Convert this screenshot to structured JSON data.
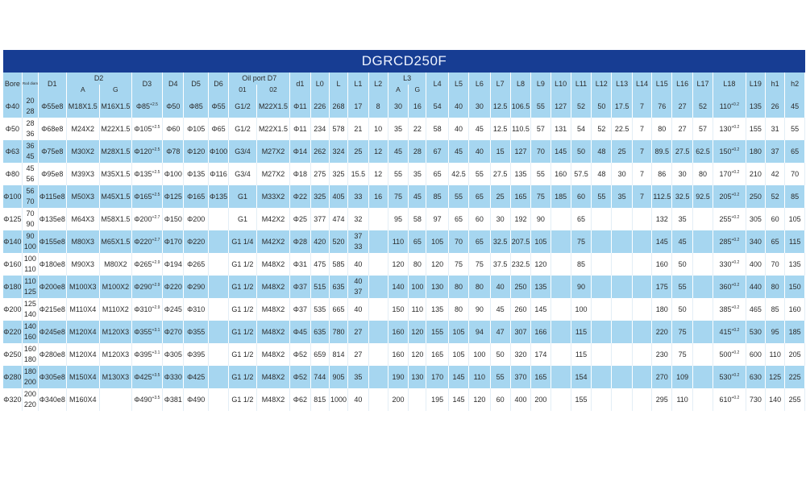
{
  "title": "DGRCD250F",
  "header": {
    "bore": "Bore",
    "rod_diameter": "Rod diameter",
    "d1_cap": "D1",
    "d2": "D2",
    "d2_a": "A",
    "d2_g": "G",
    "d3": "D3",
    "d4": "D4",
    "d5": "D5",
    "d6": "D6",
    "oil_port": "Oil port D7",
    "o1": "01",
    "o2": "02",
    "d1": "d1",
    "l0": "L0",
    "l": "L",
    "l1": "L1",
    "l2": "L2",
    "l3": "L3",
    "l3_a": "A",
    "l3_g": "G",
    "l4": "L4",
    "l5": "L5",
    "l6": "L6",
    "l7": "L7",
    "l8": "L8",
    "l9": "L9",
    "l10": "L10",
    "l11": "L11",
    "l12": "L12",
    "l13": "L13",
    "l14": "L14",
    "l15": "L15",
    "l16": "L16",
    "l17": "L17",
    "l18": "L18",
    "l19": "L19",
    "h1": "h1",
    "h2": "h2"
  },
  "rows": [
    {
      "bore": "Φ40",
      "rod": [
        "20",
        "28"
      ],
      "D1": "Φ55e8",
      "D2A": "M18X1.5",
      "D2G": "M16X1.5",
      "D3": "Φ85",
      "D3tol": "+2.5",
      "D4": "Φ50",
      "D5": "Φ85",
      "D6": "Φ55",
      "O1": "G1/2",
      "O2": "M22X1.5",
      "d1": "Φ11",
      "L0": "226",
      "L": "268",
      "L1": [
        "17"
      ],
      "L2": "8",
      "L3A": "30",
      "L3G": "16",
      "L4": "54",
      "L5": "40",
      "L6": "30",
      "L7": "12.5",
      "L8": "106.5",
      "L9": "55",
      "L10": "127",
      "L11": "52",
      "L12": "50",
      "L13": "17.5",
      "L14": "7",
      "L15": "76",
      "L16": "27",
      "L17": "52",
      "L18": "110",
      "L18tol": "+0.2",
      "L19": "135",
      "h1": "26",
      "h2": "45"
    },
    {
      "bore": "Φ50",
      "rod": [
        "28",
        "36"
      ],
      "D1": "Φ68e8",
      "D2A": "M24X2",
      "D2G": "M22X1.5",
      "D3": "Φ105",
      "D3tol": "+2.5",
      "D4": "Φ60",
      "D5": "Φ105",
      "D6": "Φ65",
      "O1": "G1/2",
      "O2": "M22X1.5",
      "d1": "Φ11",
      "L0": "234",
      "L": "578",
      "L1": [
        "21"
      ],
      "L2": "10",
      "L3A": "35",
      "L3G": "22",
      "L4": "58",
      "L5": "40",
      "L6": "45",
      "L7": "12.5",
      "L8": "110.5",
      "L9": "57",
      "L10": "131",
      "L11": "54",
      "L12": "52",
      "L13": "22.5",
      "L14": "7",
      "L15": "80",
      "L16": "27",
      "L17": "57",
      "L18": "130",
      "L18tol": "+0.2",
      "L19": "155",
      "h1": "31",
      "h2": "55"
    },
    {
      "bore": "Φ63",
      "rod": [
        "36",
        "45"
      ],
      "D1": "Φ75e8",
      "D2A": "M30X2",
      "D2G": "M28X1.5",
      "D3": "Φ120",
      "D3tol": "+2.5",
      "D4": "Φ78",
      "D5": "Φ120",
      "D6": "Φ100",
      "O1": "G3/4",
      "O2": "M27X2",
      "d1": "Φ14",
      "L0": "262",
      "L": "324",
      "L1": [
        "25"
      ],
      "L2": "12",
      "L3A": "45",
      "L3G": "28",
      "L4": "67",
      "L5": "45",
      "L6": "40",
      "L7": "15",
      "L8": "127",
      "L9": "70",
      "L10": "145",
      "L11": "50",
      "L12": "48",
      "L13": "25",
      "L14": "7",
      "L15": "89.5",
      "L16": "27.5",
      "L17": "62.5",
      "L18": "150",
      "L18tol": "+0.2",
      "L19": "180",
      "h1": "37",
      "h2": "65"
    },
    {
      "bore": "Φ80",
      "rod": [
        "45",
        "56"
      ],
      "D1": "Φ95e8",
      "D2A": "M39X3",
      "D2G": "M35X1.5",
      "D3": "Φ135",
      "D3tol": "+2.5",
      "D4": "Φ100",
      "D5": "Φ135",
      "D6": "Φ116",
      "O1": "G3/4",
      "O2": "M27X2",
      "d1": "Φ18",
      "L0": "275",
      "L": "325",
      "L1": [
        "15.5"
      ],
      "L2": "12",
      "L3A": "55",
      "L3G": "35",
      "L4": "65",
      "L5": "42.5",
      "L6": "55",
      "L7": "27.5",
      "L8": "135",
      "L9": "55",
      "L10": "160",
      "L11": "57.5",
      "L12": "48",
      "L13": "30",
      "L14": "7",
      "L15": "86",
      "L16": "30",
      "L17": "80",
      "L18": "170",
      "L18tol": "+0.2",
      "L19": "210",
      "h1": "42",
      "h2": "70"
    },
    {
      "bore": "Φ100",
      "rod": [
        "56",
        "70"
      ],
      "D1": "Φ115e8",
      "D2A": "M50X3",
      "D2G": "M45X1.5",
      "D3": "Φ165",
      "D3tol": "+2.5",
      "D4": "Φ125",
      "D5": "Φ165",
      "D6": "Φ135",
      "O1": "G1",
      "O2": "M33X2",
      "d1": "Φ22",
      "L0": "325",
      "L": "405",
      "L1": [
        "33"
      ],
      "L2": "16",
      "L3A": "75",
      "L3G": "45",
      "L4": "85",
      "L5": "55",
      "L6": "65",
      "L7": "25",
      "L8": "165",
      "L9": "75",
      "L10": "185",
      "L11": "60",
      "L12": "55",
      "L13": "35",
      "L14": "7",
      "L15": "112.5",
      "L16": "32.5",
      "L17": "92.5",
      "L18": "205",
      "L18tol": "+0.2",
      "L19": "250",
      "h1": "52",
      "h2": "85"
    },
    {
      "bore": "Φ125",
      "rod": [
        "70",
        "90"
      ],
      "D1": "Φ135e8",
      "D2A": "M64X3",
      "D2G": "M58X1.5",
      "D3": "Φ200",
      "D3tol": "+2.7",
      "D4": "Φ150",
      "D5": "Φ200",
      "D6": "",
      "O1": "G1",
      "O2": "M42X2",
      "d1": "Φ25",
      "L0": "377",
      "L": "474",
      "L1": [
        "32"
      ],
      "L2": "",
      "L3A": "95",
      "L3G": "58",
      "L4": "97",
      "L5": "65",
      "L6": "60",
      "L7": "30",
      "L8": "192",
      "L9": "90",
      "L10": "",
      "L11": "65",
      "L12": "",
      "L13": "",
      "L14": "",
      "L15": "132",
      "L16": "35",
      "L17": "",
      "L18": "255",
      "L18tol": "+0.2",
      "L19": "305",
      "h1": "60",
      "h2": "105"
    },
    {
      "bore": "Φ140",
      "rod": [
        "90",
        "100"
      ],
      "D1": "Φ155e8",
      "D2A": "M80X3",
      "D2G": "M65X1.5",
      "D3": "Φ220",
      "D3tol": "+2.7",
      "D4": "Φ170",
      "D5": "Φ220",
      "D6": "",
      "O1": "G1 1/4",
      "O2": "M42X2",
      "d1": "Φ28",
      "L0": "420",
      "L": "520",
      "L1": [
        "37",
        "33"
      ],
      "L2": "",
      "L3A": "110",
      "L3G": "65",
      "L4": "105",
      "L5": "70",
      "L6": "65",
      "L7": "32.5",
      "L8": "207.5",
      "L9": "105",
      "L10": "",
      "L11": "75",
      "L12": "",
      "L13": "",
      "L14": "",
      "L15": "145",
      "L16": "45",
      "L17": "",
      "L18": "285",
      "L18tol": "+0.2",
      "L19": "340",
      "h1": "65",
      "h2": "115"
    },
    {
      "bore": "Φ160",
      "rod": [
        "100",
        "110"
      ],
      "D1": "Φ180e8",
      "D2A": "M90X3",
      "D2G": "M80X2",
      "D3": "Φ265",
      "D3tol": "+2.9",
      "D4": "Φ194",
      "D5": "Φ265",
      "D6": "",
      "O1": "G1 1/2",
      "O2": "M48X2",
      "d1": "Φ31",
      "L0": "475",
      "L": "585",
      "L1": [
        "40"
      ],
      "L2": "",
      "L3A": "120",
      "L3G": "80",
      "L4": "120",
      "L5": "75",
      "L6": "75",
      "L7": "37.5",
      "L8": "232.5",
      "L9": "120",
      "L10": "",
      "L11": "85",
      "L12": "",
      "L13": "",
      "L14": "",
      "L15": "160",
      "L16": "50",
      "L17": "",
      "L18": "330",
      "L18tol": "+0.2",
      "L19": "400",
      "h1": "70",
      "h2": "135"
    },
    {
      "bore": "Φ180",
      "rod": [
        "110",
        "125"
      ],
      "D1": "Φ200e8",
      "D2A": "M100X3",
      "D2G": "M100X2",
      "D3": "Φ290",
      "D3tol": "+2.9",
      "D4": "Φ220",
      "D5": "Φ290",
      "D6": "",
      "O1": "G1 1/2",
      "O2": "M48X2",
      "d1": "Φ37",
      "L0": "515",
      "L": "635",
      "L1": [
        "40",
        "37"
      ],
      "L2": "",
      "L3A": "140",
      "L3G": "100",
      "L4": "130",
      "L5": "80",
      "L6": "80",
      "L7": "40",
      "L8": "250",
      "L9": "135",
      "L10": "",
      "L11": "90",
      "L12": "",
      "L13": "",
      "L14": "",
      "L15": "175",
      "L16": "55",
      "L17": "",
      "L18": "360",
      "L18tol": "+0.2",
      "L19": "440",
      "h1": "80",
      "h2": "150"
    },
    {
      "bore": "Φ200",
      "rod": [
        "125",
        "140"
      ],
      "D1": "Φ215e8",
      "D2A": "M110X4",
      "D2G": "M110X2",
      "D3": "Φ310",
      "D3tol": "+2.9",
      "D4": "Φ245",
      "D5": "Φ310",
      "D6": "",
      "O1": "G1 1/2",
      "O2": "M48X2",
      "d1": "Φ37",
      "L0": "535",
      "L": "665",
      "L1": [
        "40"
      ],
      "L2": "",
      "L3A": "150",
      "L3G": "110",
      "L4": "135",
      "L5": "80",
      "L6": "90",
      "L7": "45",
      "L8": "260",
      "L9": "145",
      "L10": "",
      "L11": "100",
      "L12": "",
      "L13": "",
      "L14": "",
      "L15": "180",
      "L16": "50",
      "L17": "",
      "L18": "385",
      "L18tol": "+0.2",
      "L19": "465",
      "h1": "85",
      "h2": "160"
    },
    {
      "bore": "Φ220",
      "rod": [
        "140",
        "160"
      ],
      "D1": "Φ245e8",
      "D2A": "M120X4",
      "D2G": "M120X3",
      "D3": "Φ355",
      "D3tol": "+3.1",
      "D4": "Φ270",
      "D5": "Φ355",
      "D6": "",
      "O1": "G1 1/2",
      "O2": "M48X2",
      "d1": "Φ45",
      "L0": "635",
      "L": "780",
      "L1": [
        "27"
      ],
      "L2": "",
      "L3A": "160",
      "L3G": "120",
      "L4": "155",
      "L5": "105",
      "L6": "94",
      "L7": "47",
      "L8": "307",
      "L9": "166",
      "L10": "",
      "L11": "115",
      "L12": "",
      "L13": "",
      "L14": "",
      "L15": "220",
      "L16": "75",
      "L17": "",
      "L18": "415",
      "L18tol": "+0.2",
      "L19": "530",
      "h1": "95",
      "h2": "185"
    },
    {
      "bore": "Φ250",
      "rod": [
        "160",
        "180"
      ],
      "D1": "Φ280e8",
      "D2A": "M120X4",
      "D2G": "M120X3",
      "D3": "Φ395",
      "D3tol": "+3.1",
      "D4": "Φ305",
      "D5": "Φ395",
      "D6": "",
      "O1": "G1 1/2",
      "O2": "M48X2",
      "d1": "Φ52",
      "L0": "659",
      "L": "814",
      "L1": [
        "27"
      ],
      "L2": "",
      "L3A": "160",
      "L3G": "120",
      "L4": "165",
      "L5": "105",
      "L6": "100",
      "L7": "50",
      "L8": "320",
      "L9": "174",
      "L10": "",
      "L11": "115",
      "L12": "",
      "L13": "",
      "L14": "",
      "L15": "230",
      "L16": "75",
      "L17": "",
      "L18": "500",
      "L18tol": "+0.2",
      "L19": "600",
      "h1": "110",
      "h2": "205"
    },
    {
      "bore": "Φ280",
      "rod": [
        "180",
        "200"
      ],
      "D1": "Φ305e8",
      "D2A": "M150X4",
      "D2G": "M130X3",
      "D3": "Φ425",
      "D3tol": "+3.5",
      "D4": "Φ330",
      "D5": "Φ425",
      "D6": "",
      "O1": "G1 1/2",
      "O2": "M48X2",
      "d1": "Φ52",
      "L0": "744",
      "L": "905",
      "L1": [
        "35"
      ],
      "L2": "",
      "L3A": "190",
      "L3G": "130",
      "L4": "170",
      "L5": "145",
      "L6": "110",
      "L7": "55",
      "L8": "370",
      "L9": "165",
      "L10": "",
      "L11": "154",
      "L12": "",
      "L13": "",
      "L14": "",
      "L15": "270",
      "L16": "109",
      "L17": "",
      "L18": "530",
      "L18tol": "+0.2",
      "L19": "630",
      "h1": "125",
      "h2": "225"
    },
    {
      "bore": "Φ320",
      "rod": [
        "200",
        "220"
      ],
      "D1": "Φ340e8",
      "D2A": "M160X4",
      "D2G": "",
      "D3": "Φ490",
      "D3tol": "+3.5",
      "D4": "Φ381",
      "D5": "Φ490",
      "D6": "",
      "O1": "G1 1/2",
      "O2": "M48X2",
      "d1": "Φ62",
      "L0": "815",
      "L": "1000",
      "L1": [
        "40"
      ],
      "L2": "",
      "L3A": "200",
      "L3G": "",
      "L4": "195",
      "L5": "145",
      "L6": "120",
      "L7": "60",
      "L8": "400",
      "L9": "200",
      "L10": "",
      "L11": "155",
      "L12": "",
      "L13": "",
      "L14": "",
      "L15": "295",
      "L16": "110",
      "L17": "",
      "L18": "610",
      "L18tol": "+0.2",
      "L19": "730",
      "h1": "140",
      "h2": "255"
    }
  ]
}
